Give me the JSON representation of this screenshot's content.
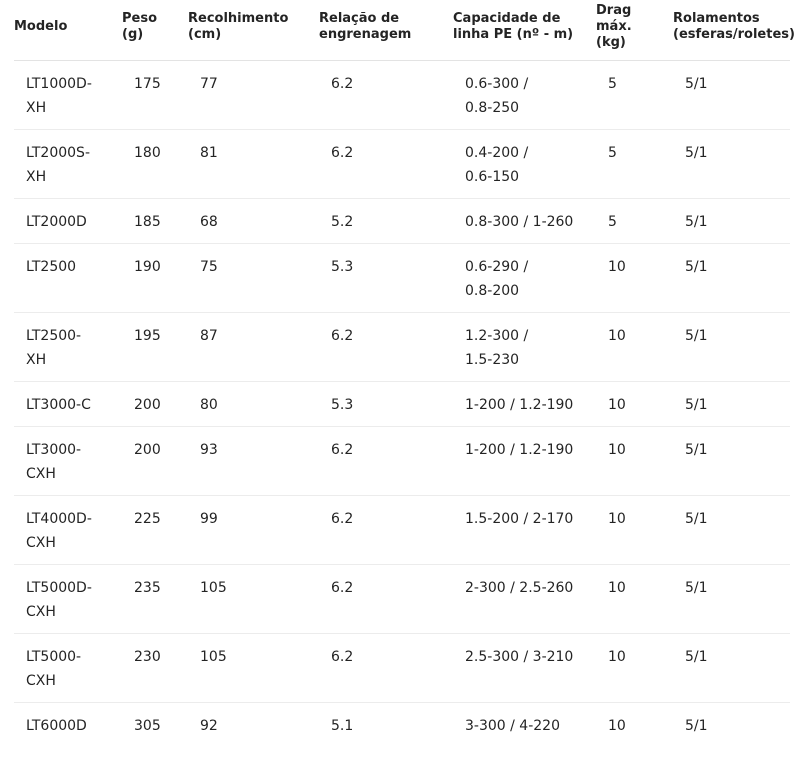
{
  "table": {
    "header": [
      [
        "Modelo"
      ],
      [
        "Peso",
        "(g)"
      ],
      [
        "Recolhimento",
        "(cm)"
      ],
      [
        "Relação de",
        "engrenagem"
      ],
      [
        "Capacidade de",
        "linha PE (nº - m)"
      ],
      [
        "Drag",
        "máx.",
        "(kg)"
      ],
      [
        "Rolamentos",
        "(esferas/roletes)"
      ]
    ],
    "rows": [
      [
        [
          "LT1000D-",
          "XH"
        ],
        [
          "175"
        ],
        [
          "77"
        ],
        [
          "6.2"
        ],
        [
          "0.6-300 /",
          "0.8-250"
        ],
        [
          "5"
        ],
        [
          "5/1"
        ]
      ],
      [
        [
          "LT2000S-",
          "XH"
        ],
        [
          "180"
        ],
        [
          "81"
        ],
        [
          "6.2"
        ],
        [
          "0.4-200 /",
          "0.6-150"
        ],
        [
          "5"
        ],
        [
          "5/1"
        ]
      ],
      [
        [
          "LT2000D"
        ],
        [
          "185"
        ],
        [
          "68"
        ],
        [
          "5.2"
        ],
        [
          "0.8-300 / 1-260"
        ],
        [
          "5"
        ],
        [
          "5/1"
        ]
      ],
      [
        [
          "LT2500"
        ],
        [
          "190"
        ],
        [
          "75"
        ],
        [
          "5.3"
        ],
        [
          "0.6-290 /",
          "0.8-200"
        ],
        [
          "10"
        ],
        [
          "5/1"
        ]
      ],
      [
        [
          "LT2500-",
          "XH"
        ],
        [
          "195"
        ],
        [
          "87"
        ],
        [
          "6.2"
        ],
        [
          "1.2-300 /",
          "1.5-230"
        ],
        [
          "10"
        ],
        [
          "5/1"
        ]
      ],
      [
        [
          "LT3000-C"
        ],
        [
          "200"
        ],
        [
          "80"
        ],
        [
          "5.3"
        ],
        [
          "1-200 / 1.2-190"
        ],
        [
          "10"
        ],
        [
          "5/1"
        ]
      ],
      [
        [
          "LT3000-",
          "CXH"
        ],
        [
          "200"
        ],
        [
          "93"
        ],
        [
          "6.2"
        ],
        [
          "1-200 / 1.2-190"
        ],
        [
          "10"
        ],
        [
          "5/1"
        ]
      ],
      [
        [
          "LT4000D-",
          "CXH"
        ],
        [
          "225"
        ],
        [
          "99"
        ],
        [
          "6.2"
        ],
        [
          "1.5-200 / 2-170"
        ],
        [
          "10"
        ],
        [
          "5/1"
        ]
      ],
      [
        [
          "LT5000D-",
          "CXH"
        ],
        [
          "235"
        ],
        [
          "105"
        ],
        [
          "6.2"
        ],
        [
          "2-300 / 2.5-260"
        ],
        [
          "10"
        ],
        [
          "5/1"
        ]
      ],
      [
        [
          "LT5000-",
          "CXH"
        ],
        [
          "230"
        ],
        [
          "105"
        ],
        [
          "6.2"
        ],
        [
          "2.5-300 / 3-210"
        ],
        [
          "10"
        ],
        [
          "5/1"
        ]
      ],
      [
        [
          "LT6000D"
        ],
        [
          "305"
        ],
        [
          "92"
        ],
        [
          "5.1"
        ],
        [
          "3-300 / 4-220"
        ],
        [
          "10"
        ],
        [
          "5/1"
        ]
      ]
    ]
  }
}
